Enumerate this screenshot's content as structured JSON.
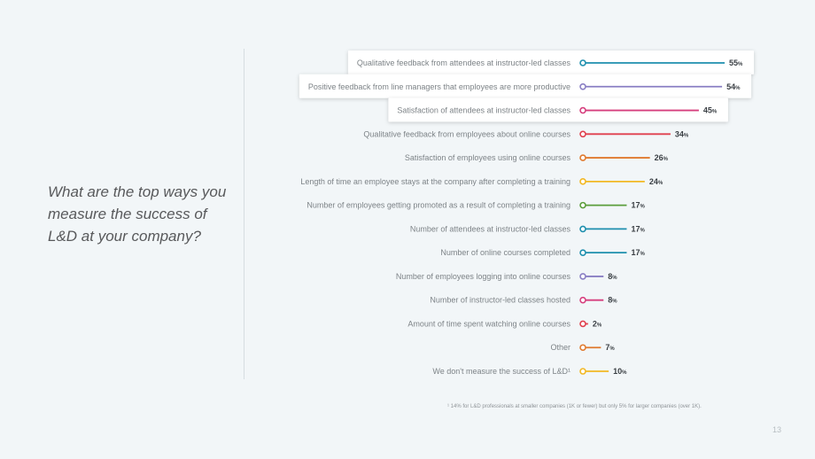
{
  "question": "What are the top ways you measure the success of L&D at your company?",
  "footnote": "¹ 14% for L&D professionals at smaller companies (1K or fewer) but only 5% for larger companies (over 1K).",
  "page_number": "13",
  "chart_data": {
    "type": "bar",
    "orientation": "horizontal",
    "title": "",
    "xlabel": "",
    "ylabel": "",
    "xlim": [
      0,
      55
    ],
    "value_suffix": "%",
    "highlighted_top_n": 3,
    "categories": [
      "Qualitative feedback from attendees at instructor-led classes",
      "Positive feedback from line managers that employees are more productive",
      "Satisfaction of attendees at instructor-led classes",
      "Qualitative feedback from employees about online courses",
      "Satisfaction of employees using online courses",
      "Length of time an employee stays at the company after completing a training",
      "Number of employees getting promoted as a result of completing a training",
      "Number of attendees at instructor-led classes",
      "Number of online courses completed",
      "Number of employees logging into online courses",
      "Number of instructor-led classes hosted",
      "Amount of time spent watching online courses",
      "Other",
      "We don't measure the success of L&D¹"
    ],
    "values": [
      55,
      54,
      45,
      34,
      26,
      24,
      17,
      17,
      17,
      8,
      8,
      2,
      7,
      10
    ],
    "colors": [
      "#1e8fae",
      "#8a7fc4",
      "#d63f7e",
      "#e0404e",
      "#e07a2f",
      "#f2b824",
      "#5b9e3c",
      "#1e8fae",
      "#1e8fae",
      "#8a7fc4",
      "#d63f7e",
      "#e0404e",
      "#e07a2f",
      "#f2b824"
    ]
  }
}
